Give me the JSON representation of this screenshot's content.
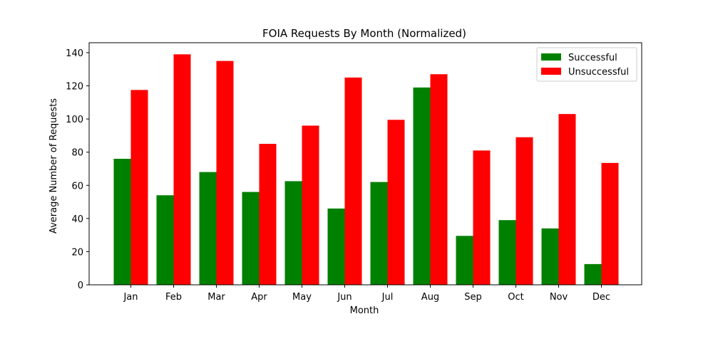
{
  "chart_data": {
    "type": "bar",
    "title": "FOIA Requests By Month (Normalized)",
    "xlabel": "Month",
    "ylabel": "Average Number of Requests",
    "categories": [
      "Jan",
      "Feb",
      "Mar",
      "Apr",
      "May",
      "Jun",
      "Jul",
      "Aug",
      "Sep",
      "Oct",
      "Nov",
      "Dec"
    ],
    "series": [
      {
        "name": "Successful",
        "color": "#008000",
        "values": [
          76,
          54,
          68,
          56,
          62.5,
          46,
          62,
          119,
          29.5,
          39,
          34,
          12.5
        ]
      },
      {
        "name": "Unsuccessful",
        "color": "#ff0000",
        "values": [
          117.5,
          139,
          135,
          85,
          96,
          125,
          99.5,
          127,
          81,
          89,
          103,
          73.5
        ]
      }
    ],
    "ylim": [
      0,
      146
    ],
    "yticks": [
      0,
      20,
      40,
      60,
      80,
      100,
      120,
      140
    ],
    "grid": false,
    "legend_position": "top-right"
  }
}
